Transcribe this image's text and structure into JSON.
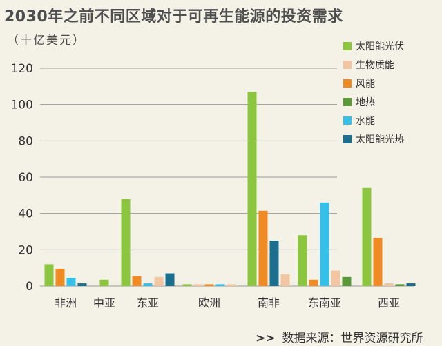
{
  "title": "2030年之前不同区域对于可再生能源的投资需求",
  "unit": "（十亿美元）",
  "source": {
    "prefix": ">>",
    "text": "数据来源：世界资源研究所"
  },
  "chart_data": {
    "type": "bar",
    "title": "2030年之前不同区域对于可再生能源的投资需求",
    "ylabel": "（十亿美元）",
    "ylim": [
      0,
      120
    ],
    "yticks": [
      0,
      20,
      40,
      60,
      80,
      100,
      120
    ],
    "grid": true,
    "legend_position": "top-right",
    "categories": [
      "非洲",
      "中亚",
      "东亚",
      "欧洲",
      "南非",
      "东南亚",
      "西亚"
    ],
    "series": [
      {
        "name": "太阳能光伏",
        "color": "#8cc63f",
        "values": [
          12,
          3.5,
          48,
          1,
          107,
          28,
          54
        ]
      },
      {
        "name": "生物质能",
        "color": "#f2c6a2",
        "values": [
          0,
          0,
          5,
          1,
          6.5,
          8.5,
          1.5
        ]
      },
      {
        "name": "风能",
        "color": "#f08a24",
        "values": [
          9.5,
          0,
          5.5,
          1,
          41.5,
          3.5,
          26.5
        ]
      },
      {
        "name": "地热",
        "color": "#5a9a3a",
        "values": [
          0,
          0,
          0,
          0,
          0,
          5,
          1
        ]
      },
      {
        "name": "水能",
        "color": "#35c0ea",
        "values": [
          4.5,
          0,
          1.5,
          1,
          0,
          46,
          0
        ]
      },
      {
        "name": "太阳能光热",
        "color": "#1a6e8e",
        "values": [
          1.5,
          0,
          7,
          0,
          25,
          0,
          1.5
        ]
      }
    ],
    "bar_order": [
      [
        "太阳能光伏",
        "风能",
        "水能",
        "太阳能光热"
      ],
      [
        "太阳能光伏"
      ],
      [
        "太阳能光伏",
        "风能",
        "水能",
        "生物质能",
        "太阳能光热"
      ],
      [
        "太阳能光伏",
        "生物质能",
        "风能",
        "水能",
        "生物质能"
      ],
      [
        "太阳能光伏",
        "风能",
        "太阳能光热",
        "生物质能"
      ],
      [
        "太阳能光伏",
        "风能",
        "水能",
        "生物质能",
        "地热"
      ],
      [
        "太阳能光伏",
        "风能",
        "生物质能",
        "地热",
        "太阳能光热"
      ]
    ]
  }
}
